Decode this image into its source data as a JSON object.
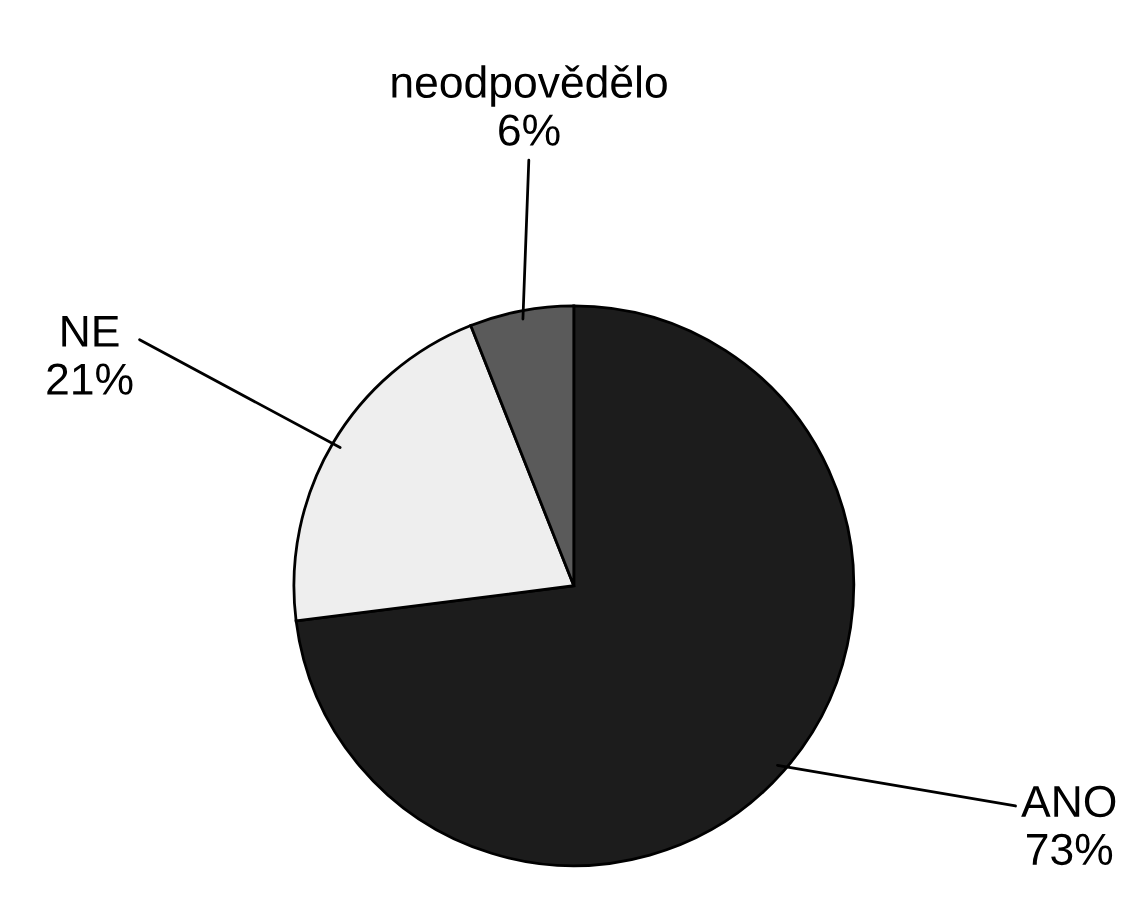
{
  "chart_data": {
    "type": "pie",
    "categories": [
      "ANO",
      "NE",
      "neodpovědělo"
    ],
    "values": [
      73,
      21,
      6
    ],
    "value_labels": [
      "73%",
      "21%",
      "6%"
    ],
    "colors": [
      "#1c1c1c",
      "#eeeeee",
      "#5a5a5a"
    ],
    "legend": false
  }
}
